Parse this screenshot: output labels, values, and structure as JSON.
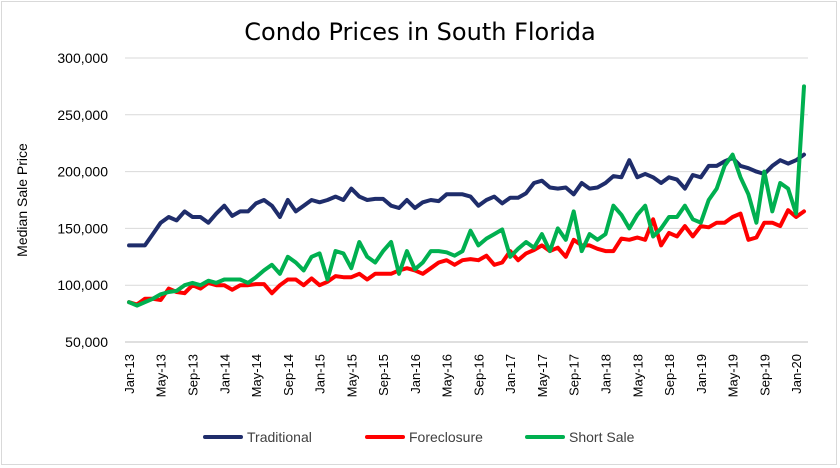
{
  "chart_data": {
    "type": "line",
    "title": "Condo Prices in South Florida",
    "xlabel": "",
    "ylabel": "Median Sale Price",
    "ylim": [
      50000,
      300000
    ],
    "y_ticks": [
      "50,000",
      "100,000",
      "150,000",
      "200,000",
      "250,000",
      "300,000"
    ],
    "x_tick_labels": [
      "Jan-13",
      "May-13",
      "Sep-13",
      "Jan-14",
      "May-14",
      "Sep-14",
      "Jan-15",
      "May-15",
      "Sep-15",
      "Jan-16",
      "May-16",
      "Sep-16",
      "Jan-17",
      "May-17",
      "Sep-17",
      "Jan-18",
      "May-18",
      "Sep-18",
      "Jan-19",
      "May-19",
      "Sep-19",
      "Jan-20"
    ],
    "x_start": "Jan-13",
    "x_end": "Jun-20",
    "grid": "horizontal",
    "legend_position": "bottom",
    "series": [
      {
        "name": "Traditional",
        "color": "#1f2d6b",
        "values": [
          135000,
          135000,
          135000,
          145000,
          155000,
          160000,
          157000,
          165000,
          160000,
          160000,
          155000,
          163000,
          170000,
          161000,
          165000,
          165000,
          172000,
          175000,
          170000,
          160000,
          175000,
          165000,
          170000,
          175000,
          173000,
          175000,
          178000,
          175000,
          185000,
          178000,
          175000,
          176000,
          176000,
          170000,
          168000,
          175000,
          168000,
          173000,
          175000,
          174000,
          180000,
          180000,
          180000,
          178000,
          170000,
          175000,
          178000,
          172000,
          177000,
          177000,
          181000,
          190000,
          192000,
          186000,
          185000,
          186000,
          180000,
          190000,
          185000,
          186000,
          190000,
          196000,
          195000,
          210000,
          195000,
          198000,
          195000,
          190000,
          195000,
          193000,
          185000,
          197000,
          195000,
          205000,
          205000,
          209000,
          212000,
          205000,
          203000,
          200000,
          198000,
          205000,
          210000,
          207000,
          210000,
          215000
        ]
      },
      {
        "name": "Foreclosure",
        "color": "#ff0000",
        "values": [
          85000,
          83000,
          88000,
          88000,
          87000,
          97000,
          94000,
          93000,
          100000,
          97000,
          102000,
          100000,
          100000,
          96000,
          100000,
          100000,
          101000,
          101000,
          93000,
          100000,
          105000,
          105000,
          100000,
          106000,
          100000,
          103000,
          108000,
          107000,
          107000,
          110000,
          105000,
          110000,
          110000,
          110000,
          113000,
          115000,
          113000,
          110000,
          115000,
          120000,
          122000,
          118000,
          122000,
          123000,
          122000,
          126000,
          118000,
          120000,
          130000,
          122000,
          128000,
          131000,
          135000,
          130000,
          133000,
          125000,
          140000,
          135000,
          135000,
          132000,
          130000,
          130000,
          141000,
          140000,
          142000,
          140000,
          158000,
          135000,
          146000,
          143000,
          152000,
          143000,
          152000,
          151000,
          155000,
          155000,
          160000,
          163000,
          140000,
          142000,
          155000,
          155000,
          152000,
          166000,
          160000,
          165000
        ]
      },
      {
        "name": "Short Sale",
        "color": "#00b050",
        "values": [
          85000,
          82000,
          85000,
          88000,
          92000,
          94000,
          95000,
          100000,
          102000,
          100000,
          104000,
          102000,
          105000,
          105000,
          105000,
          102000,
          107000,
          113000,
          118000,
          110000,
          125000,
          120000,
          113000,
          125000,
          128000,
          105000,
          130000,
          128000,
          115000,
          138000,
          125000,
          120000,
          130000,
          138000,
          110000,
          130000,
          114000,
          120000,
          130000,
          130000,
          129000,
          126000,
          130000,
          148000,
          135000,
          141000,
          145000,
          149000,
          125000,
          132000,
          138000,
          133000,
          145000,
          130000,
          150000,
          140000,
          165000,
          130000,
          145000,
          140000,
          145000,
          170000,
          162000,
          150000,
          162000,
          170000,
          143000,
          150000,
          160000,
          160000,
          170000,
          158000,
          155000,
          175000,
          185000,
          205000,
          215000,
          195000,
          180000,
          155000,
          200000,
          165000,
          190000,
          185000,
          163000,
          275000
        ]
      }
    ]
  }
}
